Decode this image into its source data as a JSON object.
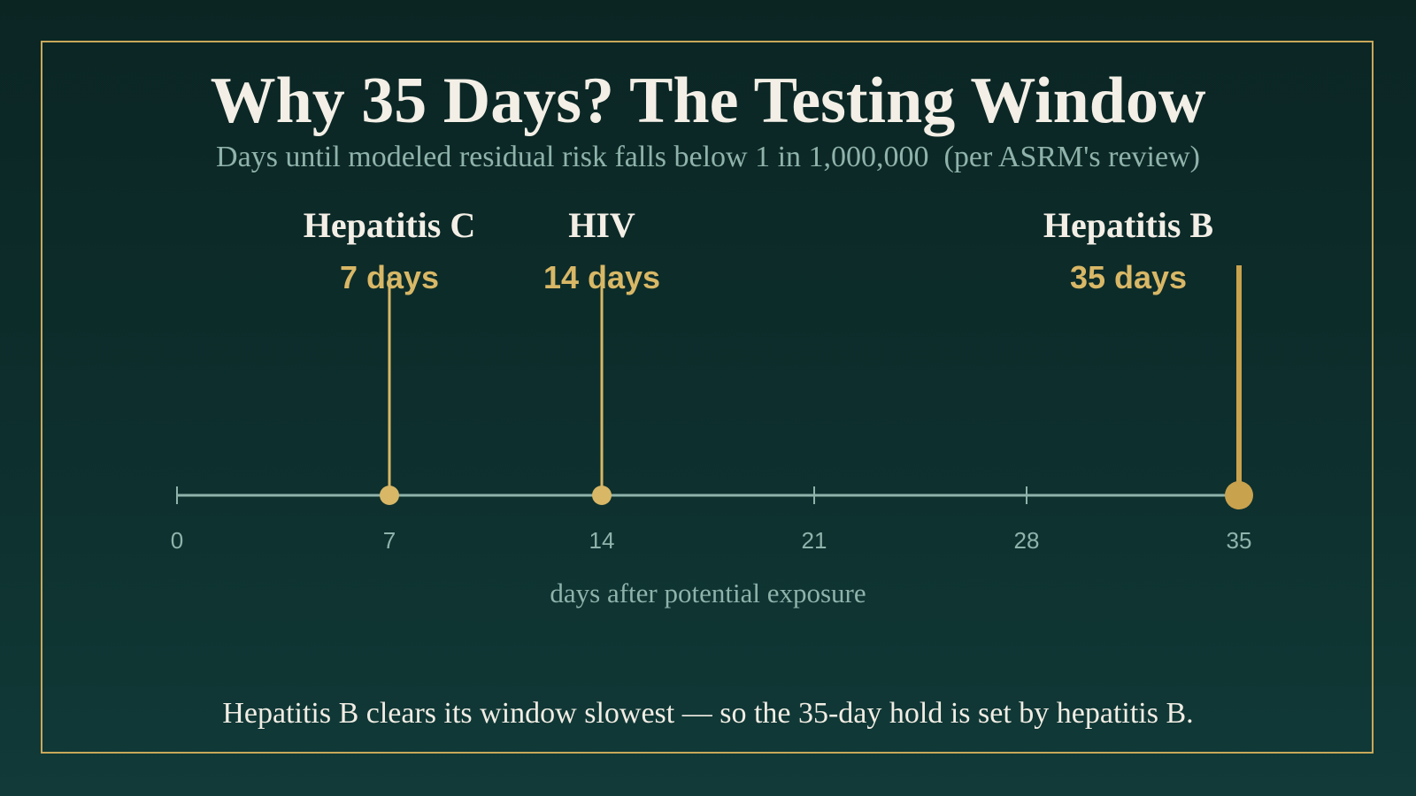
{
  "page": {
    "title": "Why 35 Days? The Testing Window",
    "subtitle": "Days until modeled residual risk falls below 1 in 1,000,000  (per ASRM's review)",
    "footnote": "Hepatitis B clears its window slowest — so the 35-day hold is set by hepatitis B."
  },
  "colors": {
    "accent": "#d8b766",
    "accent_strong": "#c9a24e",
    "axis": "#8fb3ab",
    "text": "#f3efe6",
    "frame": "#c9a85a"
  },
  "chart_data": {
    "type": "timeline",
    "title": "Why 35 Days? The Testing Window",
    "subtitle": "Days until modeled residual risk falls below 1 in 1,000,000  (per ASRM's review)",
    "xlabel": "days after potential exposure",
    "xlim": [
      0,
      35
    ],
    "ticks": [
      0,
      7,
      14,
      21,
      28,
      35
    ],
    "tick_labels": [
      "0",
      "7",
      "14",
      "21",
      "28",
      "35"
    ],
    "grid": false,
    "series": [
      {
        "points": [
          {
            "label": "Hepatitis C",
            "value": 7,
            "value_label": "7 days"
          },
          {
            "label": "HIV",
            "value": 14,
            "value_label": "14 days"
          },
          {
            "label": "Hepatitis B",
            "value": 35,
            "value_label": "35 days",
            "highlight": true
          }
        ]
      }
    ]
  }
}
